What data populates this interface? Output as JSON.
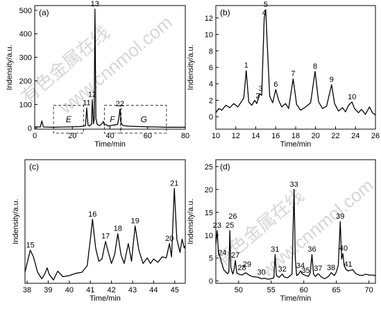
{
  "watermark": {
    "text_a": "有色金属在线",
    "text_b": "www.cnnmol.com"
  },
  "chart_data": [
    {
      "id": "a",
      "type": "line",
      "panel_label": "(a)",
      "xlabel": "Time/min",
      "ylabel": "Indensity/a.u.",
      "xlim": [
        0,
        80
      ],
      "ylim": [
        -5,
        520
      ],
      "xticks": [
        0,
        20,
        40,
        60,
        80
      ],
      "yticks": [
        0,
        100,
        200,
        300,
        400,
        500
      ],
      "line_points": [
        [
          0,
          5
        ],
        [
          3,
          4
        ],
        [
          3.8,
          30
        ],
        [
          4.6,
          4
        ],
        [
          10,
          3
        ],
        [
          15,
          4
        ],
        [
          20,
          5
        ],
        [
          24,
          6
        ],
        [
          26,
          8
        ],
        [
          27,
          10
        ],
        [
          27.6,
          85
        ],
        [
          28.3,
          12
        ],
        [
          29,
          9
        ],
        [
          30.2,
          15
        ],
        [
          30.6,
          120
        ],
        [
          31.2,
          18
        ],
        [
          31.6,
          35
        ],
        [
          32,
          505
        ],
        [
          32.5,
          40
        ],
        [
          33.2,
          15
        ],
        [
          34.5,
          10
        ],
        [
          36,
          20
        ],
        [
          36.5,
          28
        ],
        [
          37,
          12
        ],
        [
          38,
          15
        ],
        [
          39,
          8
        ],
        [
          40,
          10
        ],
        [
          42,
          12
        ],
        [
          44,
          15
        ],
        [
          44.7,
          42
        ],
        [
          45.3,
          80
        ],
        [
          45.9,
          20
        ],
        [
          47,
          10
        ],
        [
          50,
          8
        ],
        [
          55,
          6
        ],
        [
          60,
          5
        ],
        [
          65,
          4
        ],
        [
          70,
          3
        ],
        [
          75,
          3
        ],
        [
          80,
          3
        ]
      ],
      "peak_labels": [
        {
          "label": "11",
          "x": 27.6,
          "y": 85
        },
        {
          "label": "12",
          "x": 30.6,
          "y": 120
        },
        {
          "label": "13",
          "x": 32,
          "y": 505
        },
        {
          "label": "22",
          "x": 45.3,
          "y": 80
        }
      ],
      "boxes": [
        {
          "label": "E",
          "x0": 10,
          "x1": 26,
          "y0": -22,
          "y1": 96
        },
        {
          "label": "F",
          "x0": 37,
          "x1": 45.5,
          "y0": -22,
          "y1": 96
        },
        {
          "label": "G",
          "x0": 46,
          "x1": 70,
          "y0": -22,
          "y1": 96
        }
      ]
    },
    {
      "id": "b",
      "type": "line",
      "panel_label": "(b)",
      "xlabel": "Time/min",
      "ylabel": "Indensity/a.u.",
      "xlim": [
        10,
        26
      ],
      "ylim": [
        -1.5,
        13.5
      ],
      "xticks": [
        10,
        12,
        14,
        16,
        18,
        20,
        22,
        24,
        26
      ],
      "yticks": [
        0,
        2,
        4,
        6,
        8,
        10,
        12
      ],
      "line_points": [
        [
          10,
          0.5
        ],
        [
          10.3,
          1
        ],
        [
          10.6,
          0.8
        ],
        [
          11,
          1.4
        ],
        [
          11.4,
          1.1
        ],
        [
          11.8,
          1.6
        ],
        [
          12.2,
          1.2
        ],
        [
          12.6,
          1.9
        ],
        [
          12.8,
          2.3
        ],
        [
          13.05,
          5.6
        ],
        [
          13.3,
          1.8
        ],
        [
          13.6,
          1.4
        ],
        [
          13.9,
          2
        ],
        [
          14.1,
          1.6
        ],
        [
          14.4,
          2.8
        ],
        [
          14.6,
          2.6
        ],
        [
          14.85,
          12
        ],
        [
          15.0,
          13
        ],
        [
          15.15,
          9
        ],
        [
          15.4,
          2.5
        ],
        [
          15.7,
          1.7
        ],
        [
          16,
          3.3
        ],
        [
          16.3,
          2
        ],
        [
          16.6,
          1.2
        ],
        [
          17,
          1.6
        ],
        [
          17.3,
          1
        ],
        [
          17.75,
          4.6
        ],
        [
          18.1,
          1.5
        ],
        [
          18.5,
          0.8
        ],
        [
          19,
          1.2
        ],
        [
          19.5,
          1.7
        ],
        [
          19.95,
          5.5
        ],
        [
          20.3,
          1.8
        ],
        [
          20.7,
          1.0
        ],
        [
          21.1,
          1.3
        ],
        [
          21.6,
          3.9
        ],
        [
          21.9,
          1.6
        ],
        [
          22.3,
          0.7
        ],
        [
          22.7,
          1.1
        ],
        [
          23,
          0.6
        ],
        [
          23.3,
          1.4
        ],
        [
          23.65,
          1.8
        ],
        [
          23.9,
          1.0
        ],
        [
          24.3,
          0.5
        ],
        [
          24.6,
          0.9
        ],
        [
          25,
          0.3
        ],
        [
          25.4,
          1.2
        ],
        [
          25.7,
          0.5
        ],
        [
          26,
          0.2
        ]
      ],
      "peak_labels": [
        {
          "label": "1",
          "x": 13.05,
          "y": 5.6
        },
        {
          "label": "2",
          "x": 14.2,
          "y": 1.9
        },
        {
          "label": "3",
          "x": 14.5,
          "y": 2.8
        },
        {
          "label": "4",
          "x": 14.85,
          "y": 12
        },
        {
          "label": "5",
          "x": 15.0,
          "y": 13
        },
        {
          "label": "6",
          "x": 16.0,
          "y": 3.3
        },
        {
          "label": "7",
          "x": 17.75,
          "y": 4.6
        },
        {
          "label": "8",
          "x": 19.95,
          "y": 5.5
        },
        {
          "label": "9",
          "x": 21.6,
          "y": 3.9
        },
        {
          "label": "10",
          "x": 23.65,
          "y": 1.8
        }
      ]
    },
    {
      "id": "c",
      "type": "line",
      "panel_label": "(c)",
      "xlabel": "Time/min",
      "ylabel": "Indensity/a.u.",
      "xlim": [
        37.9,
        45.5
      ],
      "ylim": [
        0,
        5.6
      ],
      "xticks": [
        38,
        39,
        40,
        41,
        42,
        43,
        44,
        45
      ],
      "yticks": [],
      "line_points": [
        [
          37.9,
          0.5
        ],
        [
          38.0,
          0.9
        ],
        [
          38.15,
          1.5
        ],
        [
          38.3,
          1.2
        ],
        [
          38.5,
          0.5
        ],
        [
          38.7,
          0.2
        ],
        [
          38.85,
          0.45
        ],
        [
          38.95,
          0.7
        ],
        [
          39.05,
          0.4
        ],
        [
          39.25,
          0.15
        ],
        [
          39.45,
          0.55
        ],
        [
          39.55,
          0.45
        ],
        [
          39.7,
          0.3
        ],
        [
          40,
          0.35
        ],
        [
          40.3,
          0.45
        ],
        [
          40.6,
          0.5
        ],
        [
          40.85,
          0.8
        ],
        [
          41.0,
          2.0
        ],
        [
          41.1,
          2.9
        ],
        [
          41.25,
          1.6
        ],
        [
          41.4,
          1.0
        ],
        [
          41.55,
          1.1
        ],
        [
          41.72,
          1.9
        ],
        [
          41.85,
          1.4
        ],
        [
          42,
          0.9
        ],
        [
          42.15,
          1.3
        ],
        [
          42.3,
          2.25
        ],
        [
          42.45,
          1.3
        ],
        [
          42.6,
          0.9
        ],
        [
          42.8,
          1.8
        ],
        [
          42.95,
          1.0
        ],
        [
          43.12,
          2.6
        ],
        [
          43.3,
          1.5
        ],
        [
          43.5,
          0.9
        ],
        [
          43.7,
          1.15
        ],
        [
          43.85,
          0.9
        ],
        [
          44.0,
          1.1
        ],
        [
          44.2,
          0.95
        ],
        [
          44.4,
          1.2
        ],
        [
          44.6,
          1.15
        ],
        [
          44.75,
          1.8
        ],
        [
          44.85,
          1.2
        ],
        [
          44.98,
          4.3
        ],
        [
          45.1,
          2.0
        ],
        [
          45.25,
          1.4
        ],
        [
          45.35,
          2.0
        ],
        [
          45.45,
          1.6
        ],
        [
          45.5,
          1.7
        ]
      ],
      "peak_labels": [
        {
          "label": "15",
          "x": 38.15,
          "y": 1.5
        },
        {
          "label": "16",
          "x": 41.1,
          "y": 2.9
        },
        {
          "label": "17",
          "x": 41.72,
          "y": 1.9
        },
        {
          "label": "18",
          "x": 42.3,
          "y": 2.25
        },
        {
          "label": "19",
          "x": 43.12,
          "y": 2.6
        },
        {
          "label": "20",
          "x": 44.75,
          "y": 1.8
        },
        {
          "label": "21",
          "x": 44.98,
          "y": 4.3
        }
      ]
    },
    {
      "id": "d",
      "type": "line",
      "panel_label": "(d)",
      "xlabel": "Time/min",
      "ylabel": "Indensity/a.u.",
      "xlim": [
        46.5,
        71
      ],
      "ylim": [
        -0.5,
        26.5
      ],
      "xticks": [
        50,
        55,
        60,
        65,
        70
      ],
      "yticks": [
        0,
        5,
        10,
        15,
        20,
        25
      ],
      "line_points": [
        [
          46.5,
          8
        ],
        [
          46.7,
          11
        ],
        [
          46.9,
          6
        ],
        [
          47.2,
          5
        ],
        [
          47.4,
          4
        ],
        [
          47.7,
          2.5
        ],
        [
          48,
          2
        ],
        [
          48.3,
          1.6
        ],
        [
          48.5,
          2
        ],
        [
          48.65,
          11
        ],
        [
          48.8,
          3
        ],
        [
          49.1,
          1.5
        ],
        [
          49.3,
          2.5
        ],
        [
          49.5,
          4.5
        ],
        [
          49.7,
          1.8
        ],
        [
          50,
          1.5
        ],
        [
          50.5,
          1.3
        ],
        [
          51.1,
          1.8
        ],
        [
          51.6,
          1.3
        ],
        [
          52,
          1.0
        ],
        [
          53,
          0.8
        ],
        [
          53.5,
          0.5
        ],
        [
          54,
          0.6
        ],
        [
          54.5,
          0.4
        ],
        [
          55,
          0.5
        ],
        [
          55.4,
          0.7
        ],
        [
          55.6,
          5.8
        ],
        [
          55.8,
          1.2
        ],
        [
          56.2,
          0.8
        ],
        [
          56.7,
          1.5
        ],
        [
          57,
          0.9
        ],
        [
          57.5,
          0.7
        ],
        [
          58.2,
          1.5
        ],
        [
          58.5,
          20
        ],
        [
          58.7,
          5
        ],
        [
          58.9,
          1.2
        ],
        [
          59.2,
          1.5
        ],
        [
          59.5,
          2.2
        ],
        [
          59.8,
          1.5
        ],
        [
          60.3,
          1.2
        ],
        [
          60.7,
          1.0
        ],
        [
          61,
          1.8
        ],
        [
          61.25,
          5.8
        ],
        [
          61.5,
          1.5
        ],
        [
          61.8,
          1.0
        ],
        [
          62.2,
          1.6
        ],
        [
          62.7,
          0.9
        ],
        [
          63.2,
          0.5
        ],
        [
          63.8,
          1.0
        ],
        [
          64.2,
          1.8
        ],
        [
          64.7,
          1.2
        ],
        [
          65,
          2.0
        ],
        [
          65.3,
          3.5
        ],
        [
          65.6,
          13
        ],
        [
          65.8,
          4.8
        ],
        [
          66,
          6
        ],
        [
          66.2,
          3.4
        ],
        [
          66.5,
          2.5
        ],
        [
          66.8,
          2.2
        ],
        [
          67.5,
          2.5
        ],
        [
          68,
          1.6
        ],
        [
          68.5,
          1.3
        ],
        [
          69,
          1.2
        ],
        [
          69.5,
          1.5
        ],
        [
          70,
          1.3
        ],
        [
          70.5,
          1.3
        ],
        [
          71,
          1.2
        ]
      ],
      "peak_labels": [
        {
          "label": "23",
          "x": 46.7,
          "y": 11
        },
        {
          "label": "24",
          "x": 47.5,
          "y": 5
        },
        {
          "label": "25",
          "x": 48.65,
          "y": 11
        },
        {
          "label": "26",
          "x": 49.1,
          "y": 13
        },
        {
          "label": "27",
          "x": 49.5,
          "y": 4.5
        },
        {
          "label": "28",
          "x": 50.5,
          "y": 1.8
        },
        {
          "label": "29",
          "x": 51.3,
          "y": 2.5
        },
        {
          "label": "30",
          "x": 53.5,
          "y": 0.8
        },
        {
          "label": "31",
          "x": 55.6,
          "y": 5.8
        },
        {
          "label": "32",
          "x": 56.7,
          "y": 1.5
        },
        {
          "label": "33",
          "x": 58.5,
          "y": 20
        },
        {
          "label": "34",
          "x": 59.5,
          "y": 2.2
        },
        {
          "label": "35",
          "x": 60.3,
          "y": 1.2
        },
        {
          "label": "36",
          "x": 61.25,
          "y": 5.8
        },
        {
          "label": "37",
          "x": 62.2,
          "y": 1.6
        },
        {
          "label": "38",
          "x": 64.2,
          "y": 1.8
        },
        {
          "label": "39",
          "x": 65.6,
          "y": 13
        },
        {
          "label": "40",
          "x": 66.1,
          "y": 6
        },
        {
          "label": "41",
          "x": 66.8,
          "y": 2.5
        }
      ]
    }
  ]
}
